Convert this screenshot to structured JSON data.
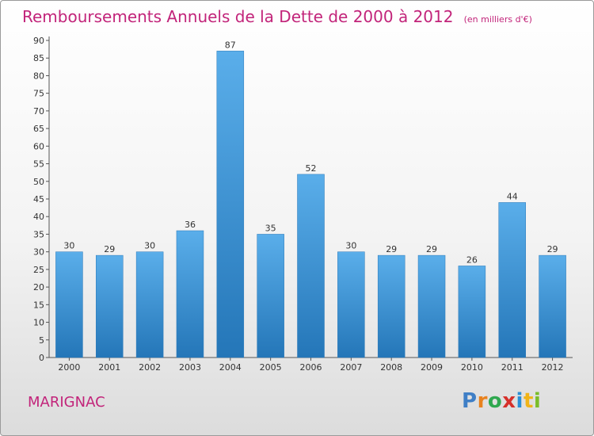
{
  "chart_data": {
    "type": "bar",
    "title": "Remboursements Annuels de la Dette de 2000 à 2012",
    "subtitle": "(en milliers d'€)",
    "categories": [
      "2000",
      "2001",
      "2002",
      "2003",
      "2004",
      "2005",
      "2006",
      "2007",
      "2008",
      "2009",
      "2010",
      "2011",
      "2012"
    ],
    "values": [
      30,
      29,
      30,
      36,
      87,
      35,
      52,
      30,
      29,
      29,
      26,
      44,
      29
    ],
    "ylim": [
      0,
      90
    ],
    "yticks": [
      0,
      5,
      10,
      15,
      20,
      25,
      30,
      35,
      40,
      45,
      50,
      55,
      60,
      65,
      70,
      75,
      80,
      85,
      90
    ],
    "grid": false,
    "bar_color": "#3d95d8",
    "title_color": "#c2247a"
  },
  "footer": {
    "commune": "MARIGNAC",
    "brand_letters": [
      {
        "ch": "P",
        "color": "#3f7fc6"
      },
      {
        "ch": "r",
        "color": "#e8821e"
      },
      {
        "ch": "o",
        "color": "#2fa84f"
      },
      {
        "ch": "x",
        "color": "#d6302a"
      },
      {
        "ch": "i",
        "color": "#2a8fd6"
      },
      {
        "ch": "t",
        "color": "#f0b419"
      },
      {
        "ch": "i",
        "color": "#7bbd2a"
      }
    ]
  }
}
